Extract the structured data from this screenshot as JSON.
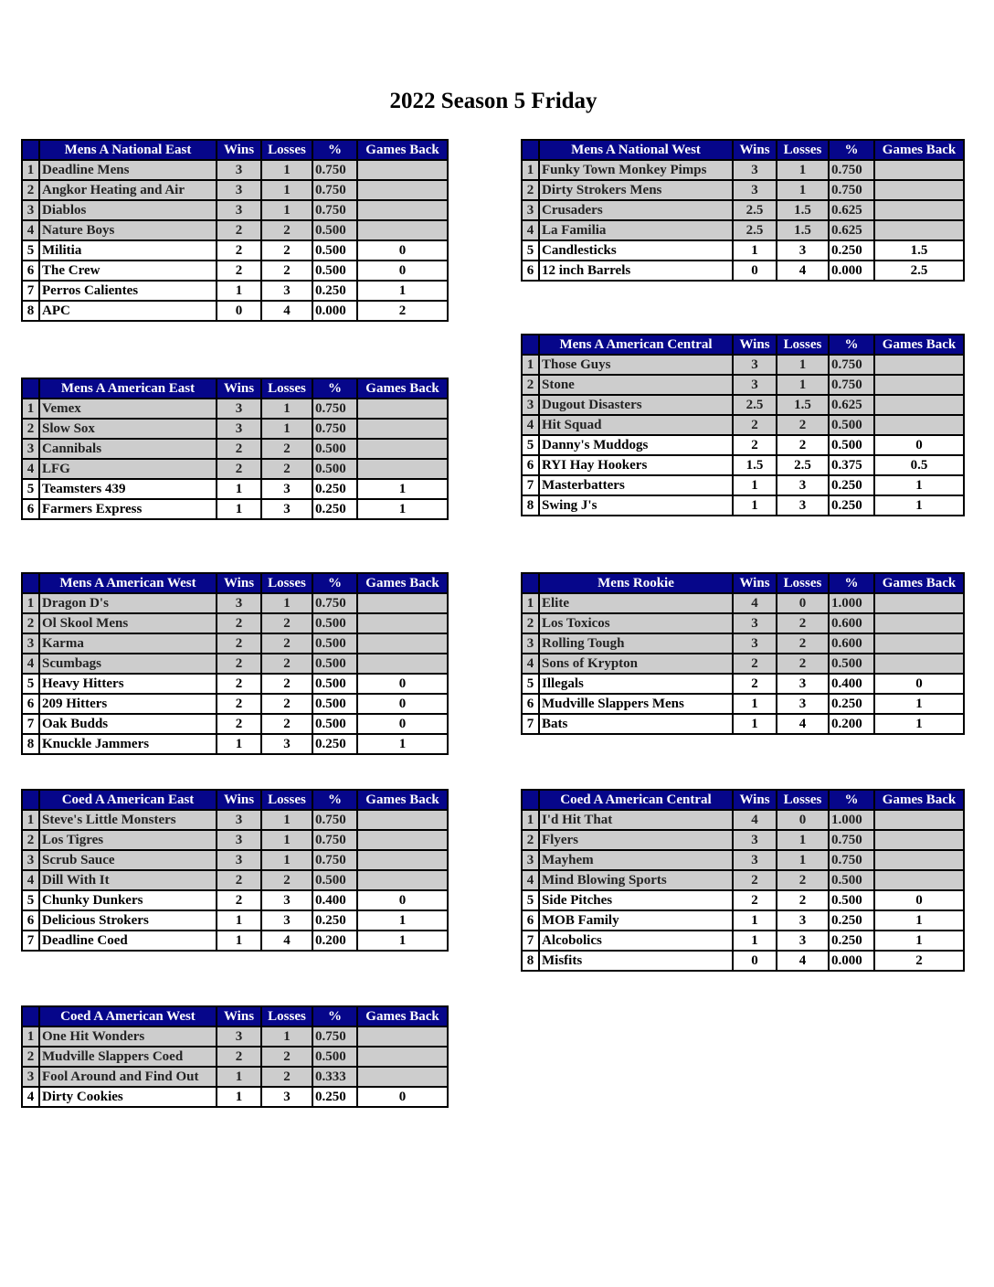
{
  "title": "2022 Season 5 Friday",
  "colors": {
    "header_bg": "#06068a",
    "header_text": "#ffffff",
    "seeded_row_bg": "#cdcdcd"
  },
  "columns": [
    "Wins",
    "Losses",
    "%",
    "Games Back"
  ],
  "tables": [
    {
      "division": "Mens A National East",
      "rows": [
        {
          "rank": "1",
          "team": "Deadline Mens",
          "w": "3",
          "l": "1",
          "pct": "0.750",
          "gb": "",
          "seeded": true
        },
        {
          "rank": "2",
          "team": "Angkor Heating and Air",
          "w": "3",
          "l": "1",
          "pct": "0.750",
          "gb": "",
          "seeded": true
        },
        {
          "rank": "3",
          "team": "Diablos",
          "w": "3",
          "l": "1",
          "pct": "0.750",
          "gb": "",
          "seeded": true
        },
        {
          "rank": "4",
          "team": "Nature Boys",
          "w": "2",
          "l": "2",
          "pct": "0.500",
          "gb": "",
          "seeded": true
        },
        {
          "rank": "5",
          "team": "Militia",
          "w": "2",
          "l": "2",
          "pct": "0.500",
          "gb": "0",
          "seeded": false
        },
        {
          "rank": "6",
          "team": "The Crew",
          "w": "2",
          "l": "2",
          "pct": "0.500",
          "gb": "0",
          "seeded": false
        },
        {
          "rank": "7",
          "team": "Perros Calientes",
          "w": "1",
          "l": "3",
          "pct": "0.250",
          "gb": "1",
          "seeded": false
        },
        {
          "rank": "8",
          "team": "APC",
          "w": "0",
          "l": "4",
          "pct": "0.000",
          "gb": "2",
          "seeded": false
        }
      ]
    },
    {
      "division": "Mens A National West",
      "rows": [
        {
          "rank": "1",
          "team": "Funky Town Monkey Pimps",
          "w": "3",
          "l": "1",
          "pct": "0.750",
          "gb": "",
          "seeded": true
        },
        {
          "rank": "2",
          "team": "Dirty Strokers Mens",
          "w": "3",
          "l": "1",
          "pct": "0.750",
          "gb": "",
          "seeded": true
        },
        {
          "rank": "3",
          "team": "Crusaders",
          "w": "2.5",
          "l": "1.5",
          "pct": "0.625",
          "gb": "",
          "seeded": true
        },
        {
          "rank": "4",
          "team": "La Familia",
          "w": "2.5",
          "l": "1.5",
          "pct": "0.625",
          "gb": "",
          "seeded": true
        },
        {
          "rank": "5",
          "team": "Candlesticks",
          "w": "1",
          "l": "3",
          "pct": "0.250",
          "gb": "1.5",
          "seeded": false
        },
        {
          "rank": "6",
          "team": "12 inch Barrels",
          "w": "0",
          "l": "4",
          "pct": "0.000",
          "gb": "2.5",
          "seeded": false
        }
      ]
    },
    {
      "division": "Mens A American Central",
      "rows": [
        {
          "rank": "1",
          "team": "Those Guys",
          "w": "3",
          "l": "1",
          "pct": "0.750",
          "gb": "",
          "seeded": true
        },
        {
          "rank": "2",
          "team": "Stone",
          "w": "3",
          "l": "1",
          "pct": "0.750",
          "gb": "",
          "seeded": true
        },
        {
          "rank": "3",
          "team": "Dugout Disasters",
          "w": "2.5",
          "l": "1.5",
          "pct": "0.625",
          "gb": "",
          "seeded": true
        },
        {
          "rank": "4",
          "team": "Hit Squad",
          "w": "2",
          "l": "2",
          "pct": "0.500",
          "gb": "",
          "seeded": true
        },
        {
          "rank": "5",
          "team": "Danny's Muddogs",
          "w": "2",
          "l": "2",
          "pct": "0.500",
          "gb": "0",
          "seeded": false
        },
        {
          "rank": "6",
          "team": "RYI Hay Hookers",
          "w": "1.5",
          "l": "2.5",
          "pct": "0.375",
          "gb": "0.5",
          "seeded": false
        },
        {
          "rank": "7",
          "team": "Masterbatters",
          "w": "1",
          "l": "3",
          "pct": "0.250",
          "gb": "1",
          "seeded": false
        },
        {
          "rank": "8",
          "team": "Swing J's",
          "w": "1",
          "l": "3",
          "pct": "0.250",
          "gb": "1",
          "seeded": false
        }
      ]
    },
    {
      "division": "Mens A American East",
      "rows": [
        {
          "rank": "1",
          "team": "Vemex",
          "w": "3",
          "l": "1",
          "pct": "0.750",
          "gb": "",
          "seeded": true
        },
        {
          "rank": "2",
          "team": "Slow Sox",
          "w": "3",
          "l": "1",
          "pct": "0.750",
          "gb": "",
          "seeded": true
        },
        {
          "rank": "3",
          "team": "Cannibals",
          "w": "2",
          "l": "2",
          "pct": "0.500",
          "gb": "",
          "seeded": true
        },
        {
          "rank": "4",
          "team": "LFG",
          "w": "2",
          "l": "2",
          "pct": "0.500",
          "gb": "",
          "seeded": true
        },
        {
          "rank": "5",
          "team": "Teamsters 439",
          "w": "1",
          "l": "3",
          "pct": "0.250",
          "gb": "1",
          "seeded": false
        },
        {
          "rank": "6",
          "team": "Farmers Express",
          "w": "1",
          "l": "3",
          "pct": "0.250",
          "gb": "1",
          "seeded": false
        }
      ]
    },
    {
      "division": "Mens A American West",
      "rows": [
        {
          "rank": "1",
          "team": "Dragon D's",
          "w": "3",
          "l": "1",
          "pct": "0.750",
          "gb": "",
          "seeded": true
        },
        {
          "rank": "2",
          "team": "Ol Skool Mens",
          "w": "2",
          "l": "2",
          "pct": "0.500",
          "gb": "",
          "seeded": true
        },
        {
          "rank": "3",
          "team": "Karma",
          "w": "2",
          "l": "2",
          "pct": "0.500",
          "gb": "",
          "seeded": true
        },
        {
          "rank": "4",
          "team": "Scumbags",
          "w": "2",
          "l": "2",
          "pct": "0.500",
          "gb": "",
          "seeded": true
        },
        {
          "rank": "5",
          "team": "Heavy Hitters",
          "w": "2",
          "l": "2",
          "pct": "0.500",
          "gb": "0",
          "seeded": false
        },
        {
          "rank": "6",
          "team": "209 Hitters",
          "w": "2",
          "l": "2",
          "pct": "0.500",
          "gb": "0",
          "seeded": false
        },
        {
          "rank": "7",
          "team": "Oak Budds",
          "w": "2",
          "l": "2",
          "pct": "0.500",
          "gb": "0",
          "seeded": false
        },
        {
          "rank": "8",
          "team": "Knuckle Jammers",
          "w": "1",
          "l": "3",
          "pct": "0.250",
          "gb": "1",
          "seeded": false
        }
      ]
    },
    {
      "division": "Mens Rookie",
      "rows": [
        {
          "rank": "1",
          "team": "Elite",
          "w": "4",
          "l": "0",
          "pct": "1.000",
          "gb": "",
          "seeded": true
        },
        {
          "rank": "2",
          "team": "Los Toxicos",
          "w": "3",
          "l": "2",
          "pct": "0.600",
          "gb": "",
          "seeded": true
        },
        {
          "rank": "3",
          "team": "Rolling Tough",
          "w": "3",
          "l": "2",
          "pct": "0.600",
          "gb": "",
          "seeded": true
        },
        {
          "rank": "4",
          "team": "Sons of Krypton",
          "w": "2",
          "l": "2",
          "pct": "0.500",
          "gb": "",
          "seeded": true
        },
        {
          "rank": "5",
          "team": "Illegals",
          "w": "2",
          "l": "3",
          "pct": "0.400",
          "gb": "0",
          "seeded": false
        },
        {
          "rank": "6",
          "team": "Mudville Slappers Mens",
          "w": "1",
          "l": "3",
          "pct": "0.250",
          "gb": "1",
          "seeded": false
        },
        {
          "rank": "7",
          "team": "Bats",
          "w": "1",
          "l": "4",
          "pct": "0.200",
          "gb": "1",
          "seeded": false
        }
      ]
    },
    {
      "division": "Coed A American East",
      "rows": [
        {
          "rank": "1",
          "team": "Steve's Little Monsters",
          "w": "3",
          "l": "1",
          "pct": "0.750",
          "gb": "",
          "seeded": true
        },
        {
          "rank": "2",
          "team": "Los Tigres",
          "w": "3",
          "l": "1",
          "pct": "0.750",
          "gb": "",
          "seeded": true
        },
        {
          "rank": "3",
          "team": "Scrub Sauce",
          "w": "3",
          "l": "1",
          "pct": "0.750",
          "gb": "",
          "seeded": true
        },
        {
          "rank": "4",
          "team": "Dill With It",
          "w": "2",
          "l": "2",
          "pct": "0.500",
          "gb": "",
          "seeded": true
        },
        {
          "rank": "5",
          "team": "Chunky Dunkers",
          "w": "2",
          "l": "3",
          "pct": "0.400",
          "gb": "0",
          "seeded": false
        },
        {
          "rank": "6",
          "team": "Delicious Strokers",
          "w": "1",
          "l": "3",
          "pct": "0.250",
          "gb": "1",
          "seeded": false
        },
        {
          "rank": "7",
          "team": "Deadline Coed",
          "w": "1",
          "l": "4",
          "pct": "0.200",
          "gb": "1",
          "seeded": false
        }
      ]
    },
    {
      "division": "Coed A American Central",
      "rows": [
        {
          "rank": "1",
          "team": "I'd Hit That",
          "w": "4",
          "l": "0",
          "pct": "1.000",
          "gb": "",
          "seeded": true
        },
        {
          "rank": "2",
          "team": "Flyers",
          "w": "3",
          "l": "1",
          "pct": "0.750",
          "gb": "",
          "seeded": true
        },
        {
          "rank": "3",
          "team": "Mayhem",
          "w": "3",
          "l": "1",
          "pct": "0.750",
          "gb": "",
          "seeded": true
        },
        {
          "rank": "4",
          "team": "Mind Blowing Sports",
          "w": "2",
          "l": "2",
          "pct": "0.500",
          "gb": "",
          "seeded": true
        },
        {
          "rank": "5",
          "team": "Side Pitches",
          "w": "2",
          "l": "2",
          "pct": "0.500",
          "gb": "0",
          "seeded": false
        },
        {
          "rank": "6",
          "team": "MOB Family",
          "w": "1",
          "l": "3",
          "pct": "0.250",
          "gb": "1",
          "seeded": false
        },
        {
          "rank": "7",
          "team": "Alcobolics",
          "w": "1",
          "l": "3",
          "pct": "0.250",
          "gb": "1",
          "seeded": false
        },
        {
          "rank": "8",
          "team": "Misfits",
          "w": "0",
          "l": "4",
          "pct": "0.000",
          "gb": "2",
          "seeded": false
        }
      ]
    },
    {
      "division": "Coed A American West",
      "rows": [
        {
          "rank": "1",
          "team": "One Hit Wonders",
          "w": "3",
          "l": "1",
          "pct": "0.750",
          "gb": "",
          "seeded": true
        },
        {
          "rank": "2",
          "team": "Mudville Slappers Coed",
          "w": "2",
          "l": "2",
          "pct": "0.500",
          "gb": "",
          "seeded": true
        },
        {
          "rank": "3",
          "team": "Fool Around and Find Out",
          "w": "1",
          "l": "2",
          "pct": "0.333",
          "gb": "",
          "seeded": true
        },
        {
          "rank": "4",
          "team": "Dirty Cookies",
          "w": "1",
          "l": "3",
          "pct": "0.250",
          "gb": "0",
          "seeded": false
        }
      ]
    }
  ]
}
